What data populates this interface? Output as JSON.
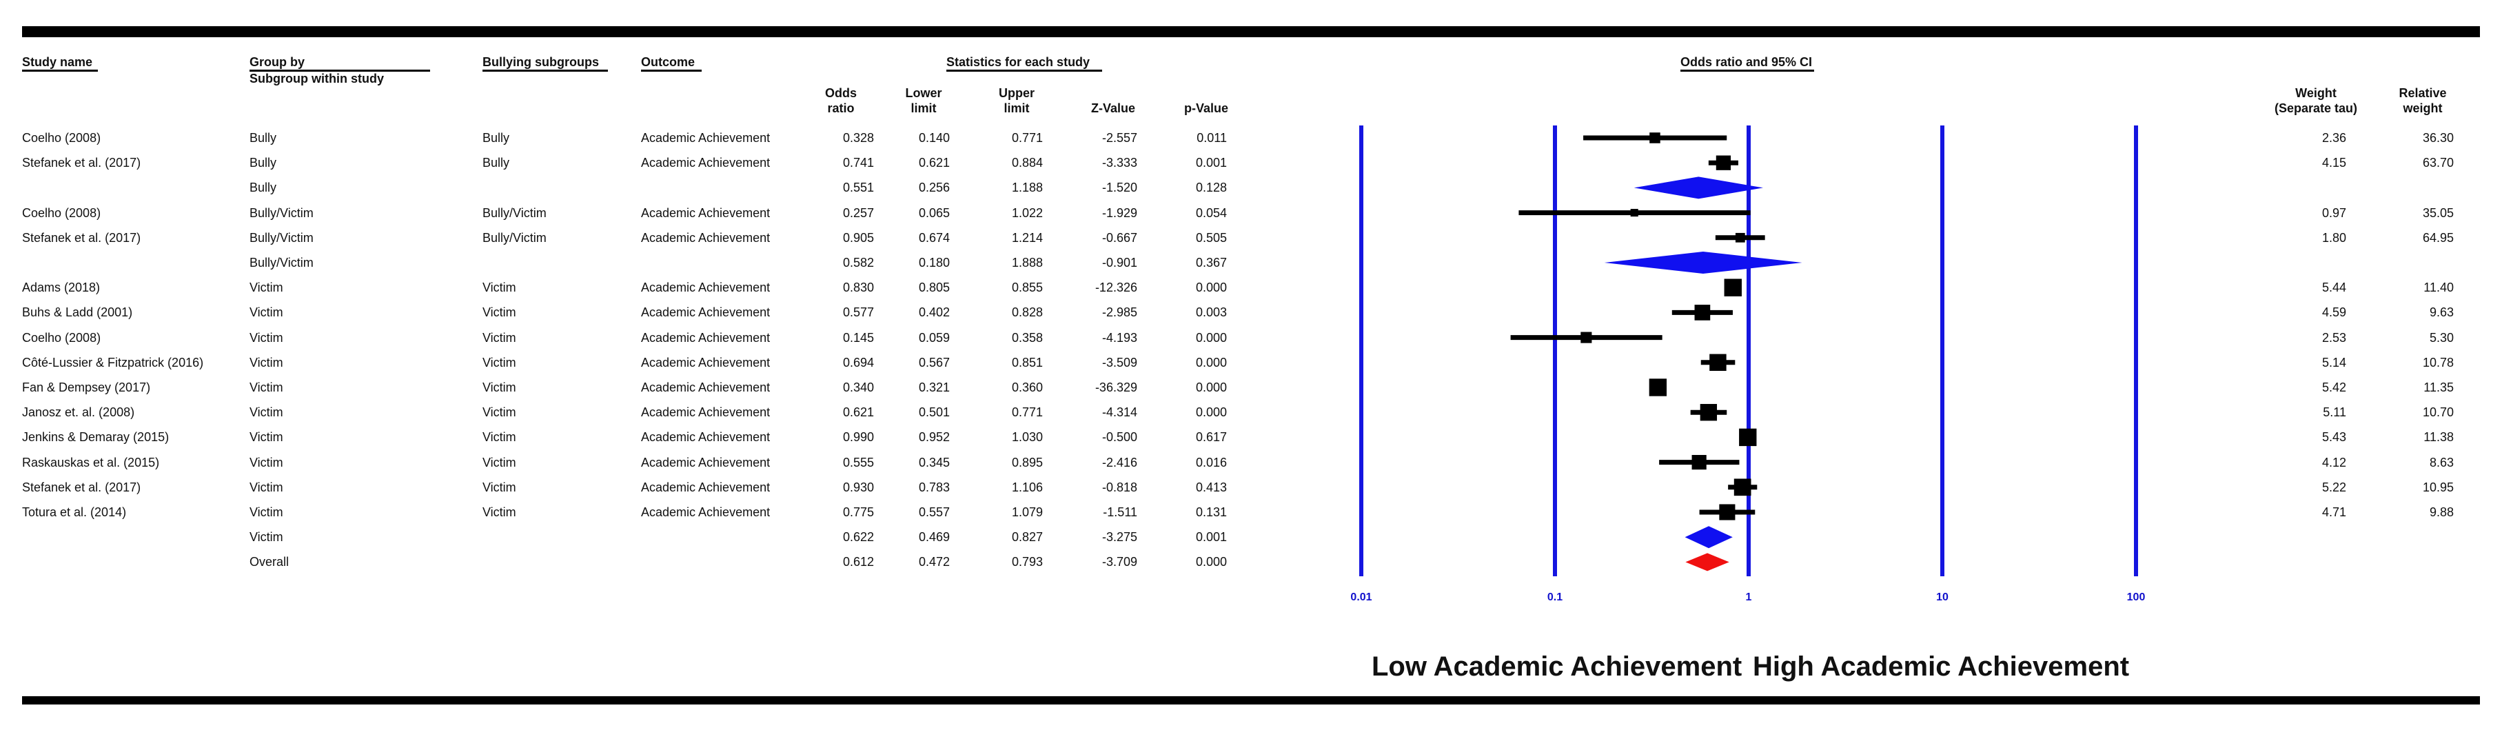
{
  "headers": {
    "study_name": "Study name",
    "group_by": "Group by",
    "subgroup_within": "Subgroup within study",
    "bullying_subgroups": "Bullying subgroups",
    "outcome": "Outcome",
    "stats_title": "Statistics for each study",
    "odds_ratio": "Odds\nratio",
    "lower": "Lower\nlimit",
    "upper": "Upper\nlimit",
    "zval": "Z-Value",
    "pval": "p-Value",
    "plot_title": "Odds ratio and 95% CI",
    "weight": "Weight\n(Separate tau)",
    "relweight": "Relative\nweight"
  },
  "chart_data": {
    "type": "forest",
    "scale": "log",
    "xlim": [
      0.01,
      100
    ],
    "ticks": [
      "0.01",
      "0.1",
      "1",
      "10",
      "100"
    ],
    "xlabel_left": "Low Academic Achievement",
    "xlabel_right": "High Academic Achievement",
    "rows": [
      {
        "study": "Coelho (2008)",
        "group": "Bully",
        "subgroup": "Bully",
        "outcome": "Academic Achievement",
        "or": "0.328",
        "lo": "0.140",
        "hi": "0.771",
        "z": "-2.557",
        "p": "0.011",
        "w": "2.36",
        "rw": "36.30",
        "kind": "study"
      },
      {
        "study": "Stefanek et al. (2017)",
        "group": "Bully",
        "subgroup": "Bully",
        "outcome": "Academic Achievement",
        "or": "0.741",
        "lo": "0.621",
        "hi": "0.884",
        "z": "-3.333",
        "p": "0.001",
        "w": "4.15",
        "rw": "63.70",
        "kind": "study"
      },
      {
        "study": "",
        "group": "Bully",
        "subgroup": "",
        "outcome": "",
        "or": "0.551",
        "lo": "0.256",
        "hi": "1.188",
        "z": "-1.520",
        "p": "0.128",
        "w": "",
        "rw": "",
        "kind": "summary"
      },
      {
        "study": "Coelho (2008)",
        "group": "Bully/Victim",
        "subgroup": "Bully/Victim",
        "outcome": "Academic Achievement",
        "or": "0.257",
        "lo": "0.065",
        "hi": "1.022",
        "z": "-1.929",
        "p": "0.054",
        "w": "0.97",
        "rw": "35.05",
        "kind": "study"
      },
      {
        "study": "Stefanek et al. (2017)",
        "group": "Bully/Victim",
        "subgroup": "Bully/Victim",
        "outcome": "Academic Achievement",
        "or": "0.905",
        "lo": "0.674",
        "hi": "1.214",
        "z": "-0.667",
        "p": "0.505",
        "w": "1.80",
        "rw": "64.95",
        "kind": "study"
      },
      {
        "study": "",
        "group": "Bully/Victim",
        "subgroup": "",
        "outcome": "",
        "or": "0.582",
        "lo": "0.180",
        "hi": "1.888",
        "z": "-0.901",
        "p": "0.367",
        "w": "",
        "rw": "",
        "kind": "summary"
      },
      {
        "study": "Adams (2018)",
        "group": "Victim",
        "subgroup": "Victim",
        "outcome": "Academic Achievement",
        "or": "0.830",
        "lo": "0.805",
        "hi": "0.855",
        "z": "-12.326",
        "p": "0.000",
        "w": "5.44",
        "rw": "11.40",
        "kind": "study"
      },
      {
        "study": "Buhs & Ladd (2001)",
        "group": "Victim",
        "subgroup": "Victim",
        "outcome": "Academic Achievement",
        "or": "0.577",
        "lo": "0.402",
        "hi": "0.828",
        "z": "-2.985",
        "p": "0.003",
        "w": "4.59",
        "rw": "9.63",
        "kind": "study"
      },
      {
        "study": "Coelho (2008)",
        "group": "Victim",
        "subgroup": "Victim",
        "outcome": "Academic Achievement",
        "or": "0.145",
        "lo": "0.059",
        "hi": "0.358",
        "z": "-4.193",
        "p": "0.000",
        "w": "2.53",
        "rw": "5.30",
        "kind": "study"
      },
      {
        "study": "Côté-Lussier & Fitzpatrick  (2016)",
        "group": "Victim",
        "subgroup": "Victim",
        "outcome": "Academic Achievement",
        "or": "0.694",
        "lo": "0.567",
        "hi": "0.851",
        "z": "-3.509",
        "p": "0.000",
        "w": "5.14",
        "rw": "10.78",
        "kind": "study"
      },
      {
        "study": "Fan & Dempsey (2017)",
        "group": "Victim",
        "subgroup": "Victim",
        "outcome": "Academic Achievement",
        "or": "0.340",
        "lo": "0.321",
        "hi": "0.360",
        "z": "-36.329",
        "p": "0.000",
        "w": "5.42",
        "rw": "11.35",
        "kind": "study"
      },
      {
        "study": "Janosz et. al. (2008)",
        "group": "Victim",
        "subgroup": "Victim",
        "outcome": "Academic Achievement",
        "or": "0.621",
        "lo": "0.501",
        "hi": "0.771",
        "z": "-4.314",
        "p": "0.000",
        "w": "5.11",
        "rw": "10.70",
        "kind": "study"
      },
      {
        "study": "Jenkins & Demaray (2015)",
        "group": "Victim",
        "subgroup": "Victim",
        "outcome": "Academic Achievement",
        "or": "0.990",
        "lo": "0.952",
        "hi": "1.030",
        "z": "-0.500",
        "p": "0.617",
        "w": "5.43",
        "rw": "11.38",
        "kind": "study"
      },
      {
        "study": "Raskauskas et al. (2015)",
        "group": "Victim",
        "subgroup": "Victim",
        "outcome": "Academic Achievement",
        "or": "0.555",
        "lo": "0.345",
        "hi": "0.895",
        "z": "-2.416",
        "p": "0.016",
        "w": "4.12",
        "rw": "8.63",
        "kind": "study"
      },
      {
        "study": "Stefanek et al. (2017)",
        "group": "Victim",
        "subgroup": "Victim",
        "outcome": "Academic Achievement",
        "or": "0.930",
        "lo": "0.783",
        "hi": "1.106",
        "z": "-0.818",
        "p": "0.413",
        "w": "5.22",
        "rw": "10.95",
        "kind": "study"
      },
      {
        "study": "Totura et al. (2014)",
        "group": "Victim",
        "subgroup": "Victim",
        "outcome": "Academic Achievement",
        "or": "0.775",
        "lo": "0.557",
        "hi": "1.079",
        "z": "-1.511",
        "p": "0.131",
        "w": "4.71",
        "rw": "9.88",
        "kind": "study"
      },
      {
        "study": "",
        "group": "Victim",
        "subgroup": "",
        "outcome": "",
        "or": "0.622",
        "lo": "0.469",
        "hi": "0.827",
        "z": "-3.275",
        "p": "0.001",
        "w": "",
        "rw": "",
        "kind": "summary"
      },
      {
        "study": "",
        "group": "Overall",
        "subgroup": "",
        "outcome": "",
        "or": "0.612",
        "lo": "0.472",
        "hi": "0.793",
        "z": "-3.709",
        "p": "0.000",
        "w": "",
        "rw": "",
        "kind": "overall"
      }
    ]
  }
}
